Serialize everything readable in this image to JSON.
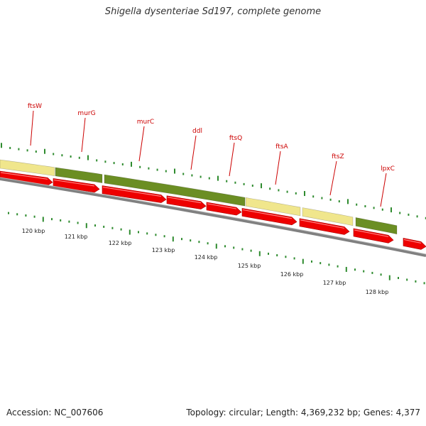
{
  "title": "Shigella dysenteriae Sd197, complete genome",
  "accession": "Accession: NC_007606",
  "summary": "Topology: circular; Length: 4,369,232 bp; Genes: 4,377",
  "colors": {
    "gene_label": "#cc0000",
    "arrow": "#ee0000",
    "cds_green": "#6b8e23",
    "cds_yellow": "#f0e68c",
    "tick": "#2e8b2e",
    "backbone": "#808080"
  },
  "genes": [
    {
      "name": "ftsW"
    },
    {
      "name": "murG"
    },
    {
      "name": "murC"
    },
    {
      "name": "ddl"
    },
    {
      "name": "ftsQ"
    },
    {
      "name": "ftsA"
    },
    {
      "name": "ftsZ"
    },
    {
      "name": "lpxC"
    }
  ],
  "kbp_labels": [
    "120 kbp",
    "121 kbp",
    "122 kbp",
    "123 kbp",
    "124 kbp",
    "125 kbp",
    "126 kbp",
    "127 kbp",
    "128 kbp"
  ]
}
